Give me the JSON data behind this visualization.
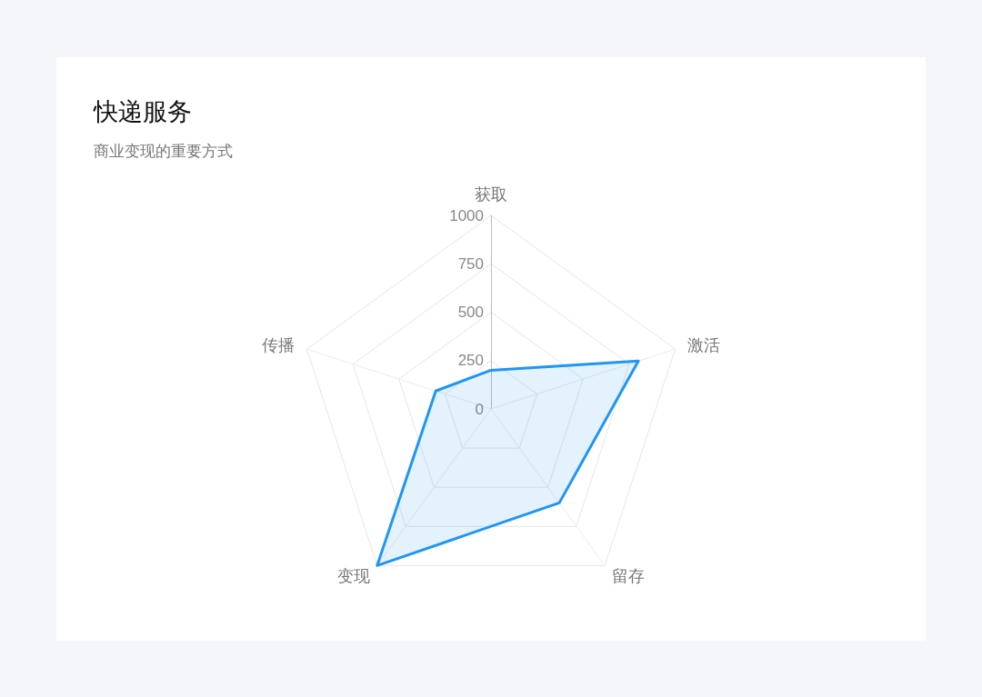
{
  "chart_data": {
    "type": "radar",
    "title": "快递服务",
    "subtitle": "商业变现的重要方式",
    "categories": [
      "获取",
      "激活",
      "留存",
      "变现",
      "传播"
    ],
    "series": [
      {
        "color": "#2196f3",
        "values": [
          200,
          800,
          600,
          1000,
          300
        ]
      }
    ],
    "ylim": [
      0,
      1000
    ],
    "yticks": [
      0,
      250,
      500,
      750,
      1000
    ],
    "marker": "none"
  }
}
